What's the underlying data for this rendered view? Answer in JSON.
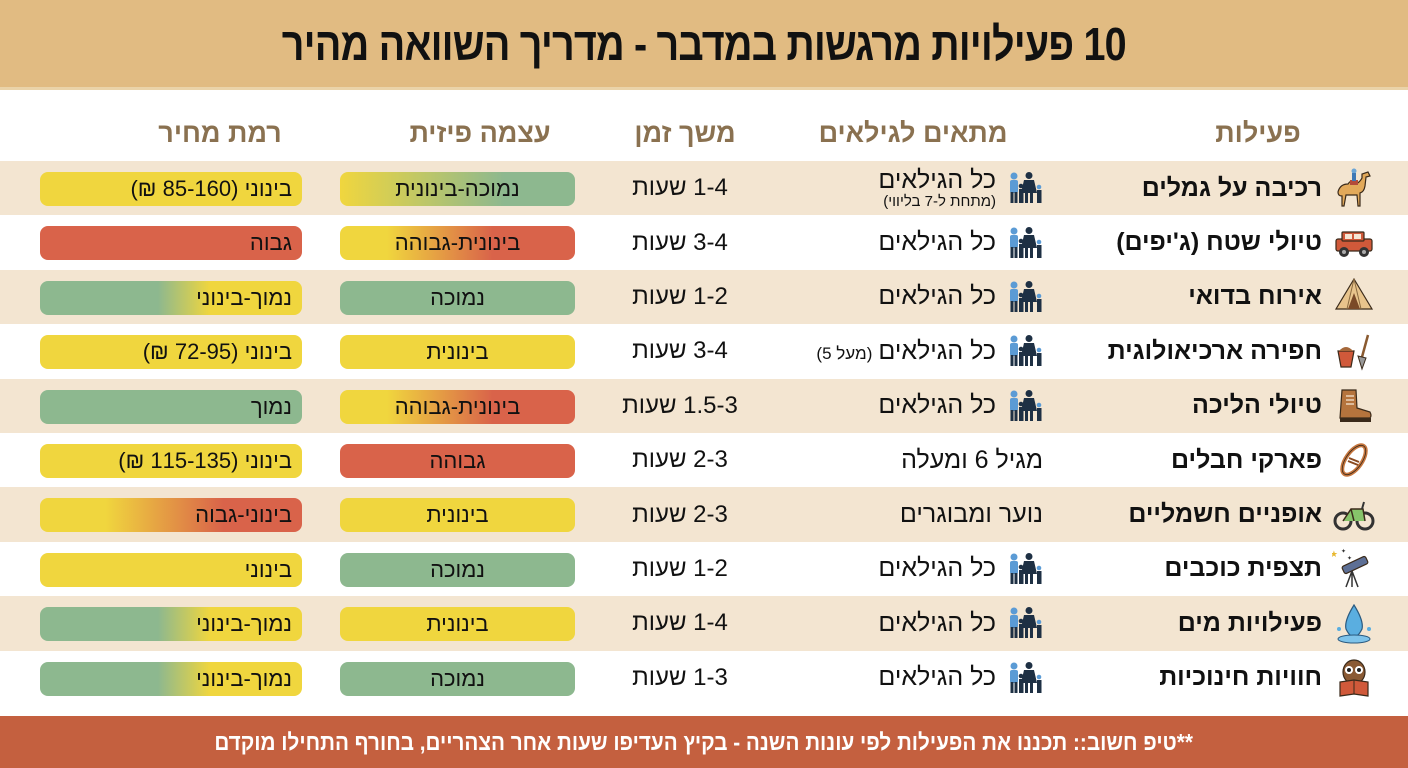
{
  "title": "10 פעילויות מרגשות במדבר - מדריך השוואה מהיר",
  "columns": {
    "activity": "פעילות",
    "ages": "מתאים לגילאים",
    "duration": "משך זמן",
    "physical": "עצמה פיזית",
    "price": "רמת מחיר"
  },
  "colors": {
    "header_bg": "#e1bb82",
    "row_shaded": "#f3e5d1",
    "green": "#8db88f",
    "yellow": "#f0d63e",
    "red": "#d9634a",
    "footer_bg": "#c4603f",
    "column_header_text": "#8a7150"
  },
  "rows": [
    {
      "icon": "camel-icon",
      "name": "רכיבה על גמלים",
      "ages": "כל הגילאים",
      "ages_note": "(מתחת ל-7 בליווי)",
      "family_icon": true,
      "duration": "1-4 שעות",
      "physical": "נמוכה-בינונית",
      "physical_level": "low-medium",
      "price": "בינוני (85-160 ₪)",
      "price_level": "medium"
    },
    {
      "icon": "jeep-icon",
      "name": "טיולי שטח (ג'יפים)",
      "ages": "כל הגילאים",
      "family_icon": true,
      "duration": "3-4 שעות",
      "physical": "בינונית-גבוהה",
      "physical_level": "medium-high",
      "price": "גבוה",
      "price_level": "high"
    },
    {
      "icon": "tent-icon",
      "name": "אירוח בדואי",
      "ages": "כל הגילאים",
      "family_icon": true,
      "duration": "1-2 שעות",
      "physical": "נמוכה",
      "physical_level": "low",
      "price": "נמוך-בינוני",
      "price_level": "low-medium"
    },
    {
      "icon": "shovel-bucket-icon",
      "name": "חפירה ארכיאולוגית",
      "ages": "כל הגילאים",
      "ages_inline_note": "(מעל 5)",
      "family_icon": true,
      "duration": "3-4 שעות",
      "physical": "בינונית",
      "physical_level": "medium",
      "price": "בינוני (72-95 ₪)",
      "price_level": "medium"
    },
    {
      "icon": "hiking-boot-icon",
      "name": "טיולי הליכה",
      "ages": "כל הגילאים",
      "family_icon": true,
      "duration": "1.5-3 שעות",
      "physical": "בינונית-גבוהה",
      "physical_level": "medium-high",
      "price": "נמוך",
      "price_level": "low"
    },
    {
      "icon": "rope-carabiner-icon",
      "name": "פארקי חבלים",
      "ages": "מגיל 6 ומעלה",
      "family_icon": false,
      "duration": "2-3 שעות",
      "physical": "גבוהה",
      "physical_level": "high",
      "price": "בינוני (115-135 ₪)",
      "price_level": "medium"
    },
    {
      "icon": "e-bike-icon",
      "name": "אופניים חשמליים",
      "ages": "נוער ומבוגרים",
      "family_icon": false,
      "duration": "2-3 שעות",
      "physical": "בינונית",
      "physical_level": "medium",
      "price": "בינוני-גבוה",
      "price_level": "medium-high"
    },
    {
      "icon": "telescope-icon",
      "name": "תצפית כוכבים",
      "ages": "כל הגילאים",
      "family_icon": true,
      "duration": "1-2 שעות",
      "physical": "נמוכה",
      "physical_level": "low",
      "price": "בינוני",
      "price_level": "medium"
    },
    {
      "icon": "water-drop-icon",
      "name": "פעילויות מים",
      "ages": "כל הגילאים",
      "family_icon": true,
      "duration": "1-4 שעות",
      "physical": "בינונית",
      "physical_level": "medium",
      "price": "נמוך-בינוני",
      "price_level": "low-medium"
    },
    {
      "icon": "owl-book-icon",
      "name": "חוויות חינוכיות",
      "ages": "כל הגילאים",
      "family_icon": true,
      "duration": "1-3 שעות",
      "physical": "נמוכה",
      "physical_level": "low",
      "price": "נמוך-בינוני",
      "price_level": "low-medium"
    }
  ],
  "footer": "**טיפ חשוב:: תכננו את הפעילות לפי עונות השנה - בקיץ העדיפו שעות אחר הצהריים, בחורף התחילו מוקדם"
}
